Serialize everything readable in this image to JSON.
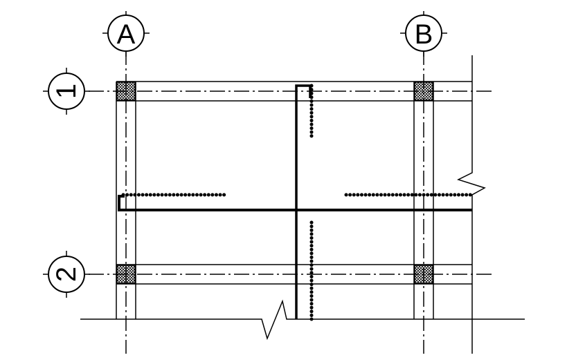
{
  "grid_columns": [
    {
      "id": "col-a",
      "label": "A"
    },
    {
      "id": "col-b",
      "label": "B"
    }
  ],
  "grid_rows": [
    {
      "id": "row-1",
      "label": "1"
    },
    {
      "id": "row-2",
      "label": "2"
    }
  ]
}
